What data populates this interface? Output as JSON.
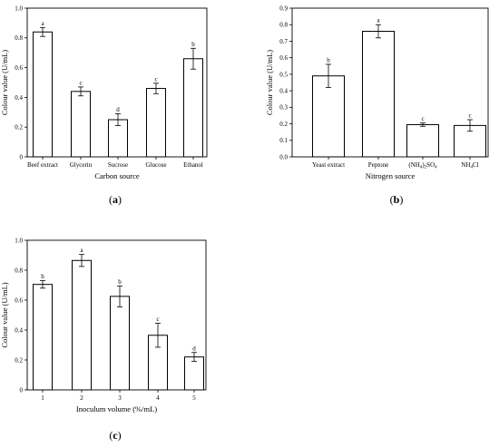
{
  "chart_data": [
    {
      "type": "bar",
      "panel_label": [
        "(",
        "a",
        ")"
      ],
      "categories": [
        "Beef extract",
        "Glycerin",
        "Sucrose",
        "Glucose",
        "Ethanol"
      ],
      "values": [
        0.84,
        0.44,
        0.25,
        0.46,
        0.66
      ],
      "errors": [
        0.03,
        0.03,
        0.04,
        0.035,
        0.07
      ],
      "significance": [
        "a",
        "c",
        "d",
        "c",
        "b"
      ],
      "xlabel": "Carbon source",
      "ylabel": "Colour value (U/mL)",
      "ylim": [
        0,
        1.0
      ],
      "yticks": [
        "0",
        "0.2",
        "0.4",
        "0.6",
        "0.8",
        "1.0"
      ],
      "bar_fill": "#ffffff",
      "bar_stroke": "#000000"
    },
    {
      "type": "bar",
      "panel_label": [
        "(",
        "b",
        ")"
      ],
      "categories": [
        [
          "Yeast extract"
        ],
        [
          "Peptone"
        ],
        [
          "(NH",
          "4",
          ")",
          "2",
          "SO",
          "4"
        ],
        [
          "NH",
          "4",
          "Cl"
        ]
      ],
      "values": [
        0.49,
        0.76,
        0.195,
        0.19
      ],
      "errors": [
        0.07,
        0.04,
        0.01,
        0.035
      ],
      "significance": [
        "b",
        "a",
        "c",
        "c"
      ],
      "xlabel": "Nitrogen source",
      "ylabel": "Colour value (U/mL)",
      "ylim": [
        0,
        0.9
      ],
      "yticks": [
        "0.0",
        "0.1",
        "0.2",
        "0.3",
        "0.4",
        "0.5",
        "0.6",
        "0.7",
        "0.8",
        "0.9"
      ],
      "bar_fill": "#ffffff",
      "bar_stroke": "#000000"
    },
    {
      "type": "bar",
      "panel_label": [
        "(",
        "c",
        ")"
      ],
      "categories": [
        "1",
        "2",
        "3",
        "4",
        "5"
      ],
      "values": [
        0.705,
        0.865,
        0.625,
        0.365,
        0.22
      ],
      "errors": [
        0.025,
        0.04,
        0.07,
        0.08,
        0.03
      ],
      "significance": [
        "b",
        "a",
        "b",
        "c",
        "d"
      ],
      "xlabel": "Inoculum volume (%/mL)",
      "ylabel": "Colour value (U/mL)",
      "ylim": [
        0,
        1.0
      ],
      "yticks": [
        "0",
        "0.2",
        "0.4",
        "0.6",
        "0.8",
        "1.0"
      ],
      "bar_fill": "#ffffff",
      "bar_stroke": "#000000"
    }
  ]
}
